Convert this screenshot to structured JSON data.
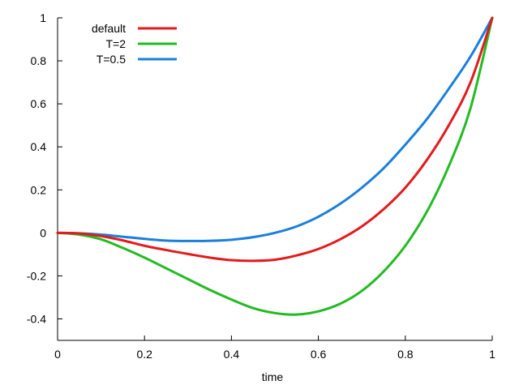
{
  "chart_data": {
    "type": "line",
    "title": "",
    "xlabel": "time",
    "ylabel": "",
    "xlim": [
      0,
      1
    ],
    "ylim": [
      -0.5,
      1
    ],
    "grid": false,
    "legend_position": "top-left",
    "x_ticks": [
      "0",
      "0.2",
      "0.4",
      "0.6",
      "0.8",
      "1"
    ],
    "y_ticks": [
      "-0.4",
      "-0.2",
      "0",
      "0.2",
      "0.4",
      "0.6",
      "0.8",
      "1"
    ],
    "series": [
      {
        "name": "default",
        "color": "#e41a1c",
        "x": [
          0,
          0.05,
          0.1,
          0.15,
          0.2,
          0.25,
          0.3,
          0.35,
          0.4,
          0.45,
          0.5,
          0.55,
          0.6,
          0.65,
          0.7,
          0.75,
          0.8,
          0.85,
          0.9,
          0.95,
          1
        ],
        "y": [
          0,
          -0.003,
          -0.015,
          -0.035,
          -0.06,
          -0.08,
          -0.098,
          -0.115,
          -0.127,
          -0.13,
          -0.125,
          -0.105,
          -0.075,
          -0.03,
          0.03,
          0.11,
          0.21,
          0.34,
          0.5,
          0.7,
          1.0
        ]
      },
      {
        "name": "T=2",
        "color": "#22bb22",
        "x": [
          0,
          0.05,
          0.1,
          0.15,
          0.2,
          0.25,
          0.3,
          0.35,
          0.4,
          0.45,
          0.5,
          0.55,
          0.6,
          0.65,
          0.7,
          0.75,
          0.8,
          0.85,
          0.9,
          0.95,
          1
        ],
        "y": [
          0,
          -0.008,
          -0.03,
          -0.07,
          -0.115,
          -0.165,
          -0.215,
          -0.265,
          -0.31,
          -0.35,
          -0.373,
          -0.38,
          -0.365,
          -0.33,
          -0.27,
          -0.18,
          -0.06,
          0.1,
          0.31,
          0.58,
          1.0
        ]
      },
      {
        "name": "T=0.5",
        "color": "#1a7fdb",
        "x": [
          0,
          0.05,
          0.1,
          0.15,
          0.2,
          0.25,
          0.3,
          0.35,
          0.4,
          0.45,
          0.5,
          0.55,
          0.6,
          0.65,
          0.7,
          0.75,
          0.8,
          0.85,
          0.9,
          0.95,
          1
        ],
        "y": [
          0,
          -0.002,
          -0.008,
          -0.018,
          -0.028,
          -0.036,
          -0.038,
          -0.037,
          -0.032,
          -0.02,
          0.0,
          0.03,
          0.075,
          0.135,
          0.21,
          0.3,
          0.41,
          0.53,
          0.67,
          0.82,
          1.0
        ]
      }
    ]
  }
}
